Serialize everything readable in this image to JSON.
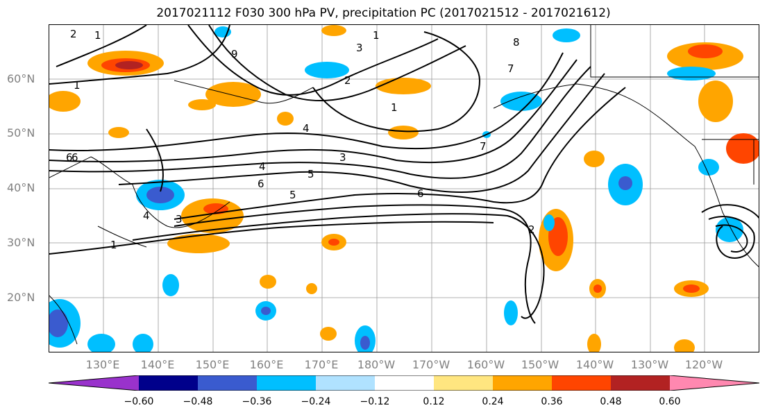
{
  "title": "2017021112 F030 300 hPa PV, precipitation PC (2017021512 - 2017021612)",
  "lat_labels": [
    "60°N",
    "50°N",
    "40°N",
    "30°N",
    "20°N"
  ],
  "lon_labels": [
    "130°E",
    "140°E",
    "150°E",
    "160°E",
    "170°E",
    "180°W",
    "170°W",
    "160°W",
    "150°W",
    "140°W",
    "130°W",
    "120°W"
  ],
  "colorbar": {
    "tick_labels": [
      "−0.60",
      "−0.48",
      "−0.36",
      "−0.24",
      "−0.12",
      "0.12",
      "0.24",
      "0.36",
      "0.48",
      "0.60"
    ],
    "colors": [
      "#9932CC",
      "#00008B",
      "#3A5BCF",
      "#00BFFF",
      "#B0E2FF",
      "#FFFFFF",
      "#FFE680",
      "#FFA500",
      "#FF4500",
      "#B22222",
      "#FF88B0"
    ]
  },
  "contour_labels": [
    "2",
    "1",
    "9",
    "3",
    "8",
    "7",
    "1",
    "2",
    "1",
    "4",
    "6",
    "3",
    "5",
    "4",
    "6",
    "5",
    "6",
    "4",
    "3",
    "1",
    "2",
    "6",
    "7",
    "3",
    "1"
  ]
}
